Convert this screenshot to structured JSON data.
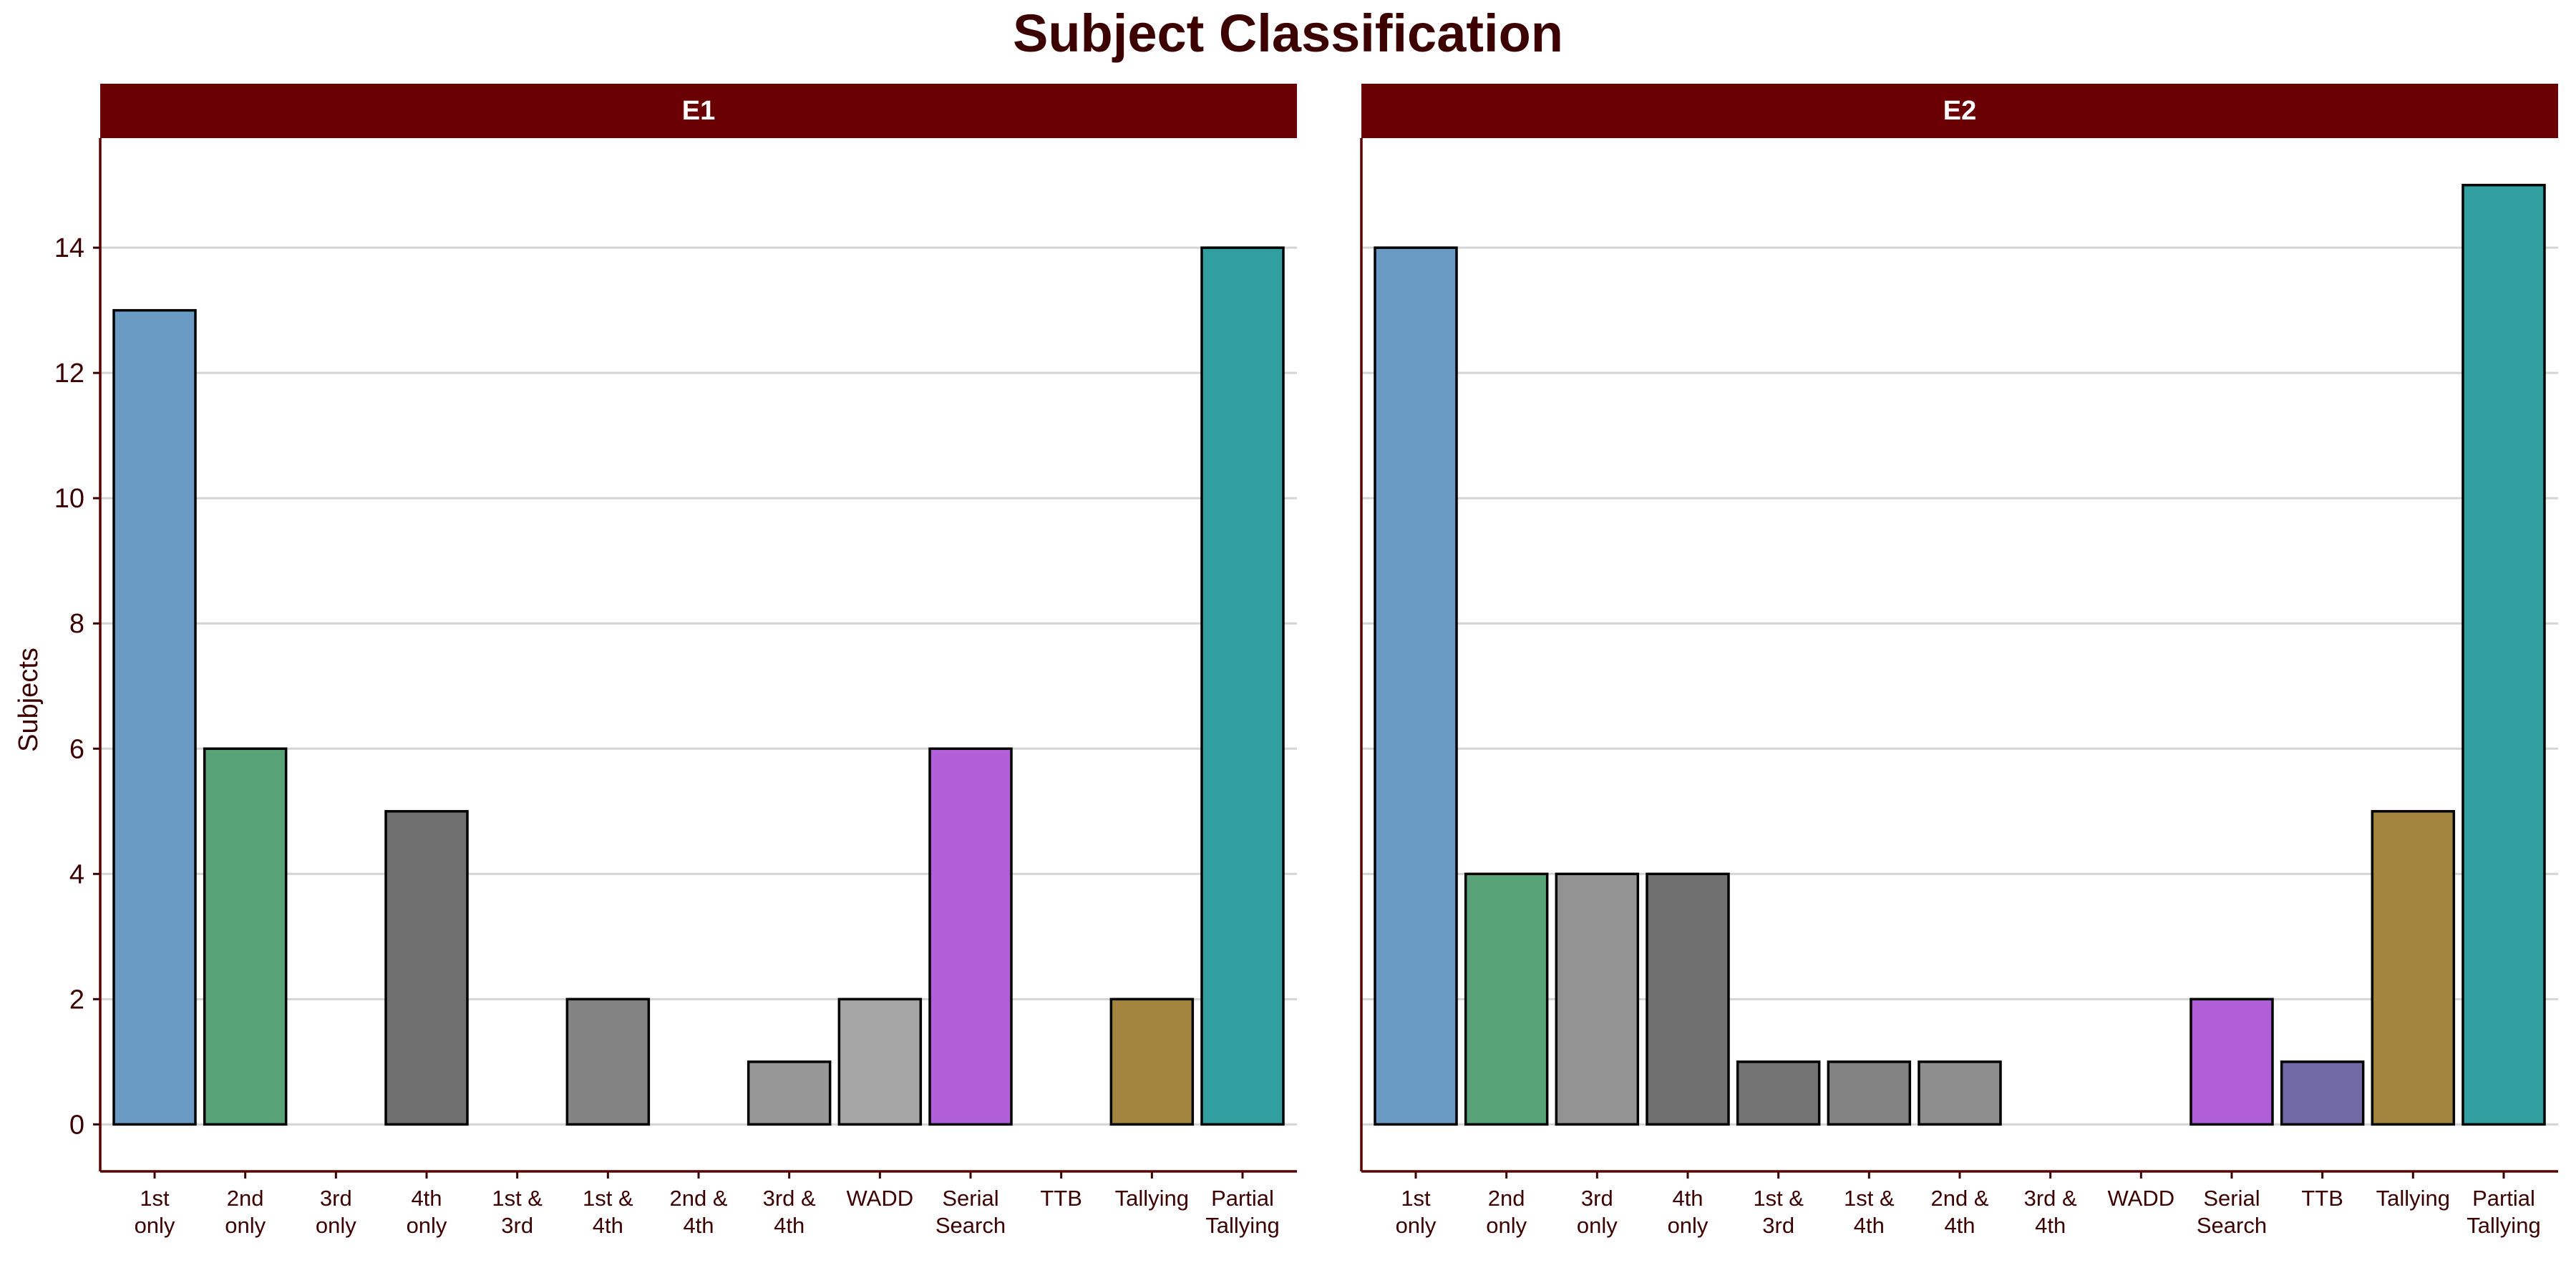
{
  "chart_data": {
    "type": "bar",
    "title": "Subject Classification",
    "ylabel": "Subjects",
    "xlabel": "",
    "ylim": [
      -0.75,
      15.75
    ],
    "yticks": [
      0,
      2,
      4,
      6,
      8,
      10,
      12,
      14
    ],
    "grid": "horizontal",
    "categories": [
      [
        "1st",
        "only"
      ],
      [
        "2nd",
        "only"
      ],
      [
        "3rd",
        "only"
      ],
      [
        "4th",
        "only"
      ],
      [
        "1st &",
        "3rd"
      ],
      [
        "1st &",
        "4th"
      ],
      [
        "2nd &",
        "4th"
      ],
      [
        "3rd &",
        "4th"
      ],
      [
        "WADD"
      ],
      [
        "Serial",
        "Search"
      ],
      [
        "TTB"
      ],
      [
        "Tallying"
      ],
      [
        "Partial",
        "Tallying"
      ]
    ],
    "colors": [
      "#6a9bc4",
      "#58a277",
      "#939393",
      "#707070",
      "#747474",
      "#838383",
      "#8e8e8e",
      "#979797",
      "#a5a5a5",
      "#b05fd9",
      "#7168a6",
      "#a3853f",
      "#319fa0"
    ],
    "panels": [
      {
        "label": "E1",
        "values": [
          13,
          6,
          0,
          5,
          0,
          2,
          0,
          1,
          2,
          6,
          0,
          2,
          14
        ]
      },
      {
        "label": "E2",
        "values": [
          14,
          4,
          4,
          4,
          1,
          1,
          1,
          0,
          0,
          2,
          1,
          5,
          15
        ]
      }
    ]
  }
}
